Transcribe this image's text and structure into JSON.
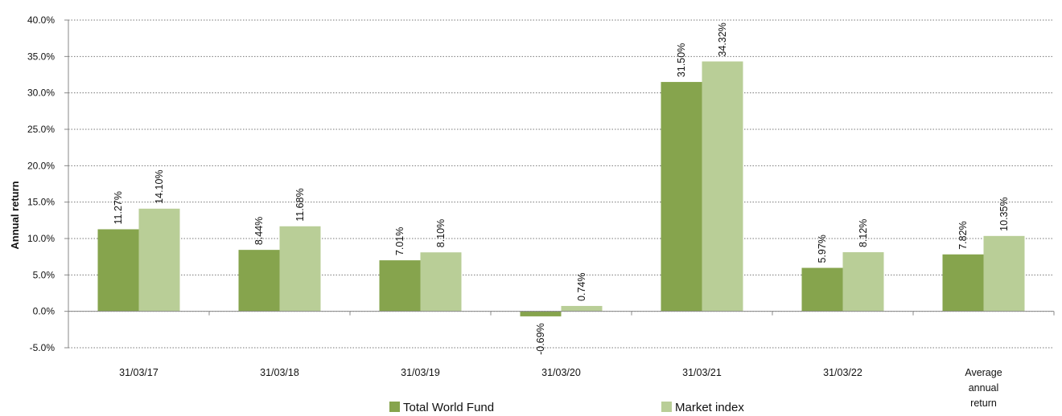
{
  "chart_data": {
    "type": "bar",
    "title": "",
    "xlabel": "",
    "ylabel": "Annual return",
    "ylim": [
      -5,
      40
    ],
    "yticks": [
      -5,
      0,
      5,
      10,
      15,
      20,
      25,
      30,
      35,
      40
    ],
    "ytick_labels": [
      "-5.0%",
      "0.0%",
      "5.0%",
      "10.0%",
      "15.0%",
      "20.0%",
      "25.0%",
      "30.0%",
      "35.0%",
      "40.0%"
    ],
    "grid": "horizontal dotted",
    "legend_position": "bottom",
    "categories": [
      [
        "31/03/17"
      ],
      [
        "31/03/18"
      ],
      [
        "31/03/19"
      ],
      [
        "31/03/20"
      ],
      [
        "31/03/21"
      ],
      [
        "31/03/22"
      ],
      [
        "Average",
        "annual",
        "return"
      ]
    ],
    "series": [
      {
        "name": "Total World Fund",
        "color": "#86a44d",
        "values": [
          11.27,
          8.44,
          7.01,
          -0.69,
          31.5,
          5.97,
          7.82
        ],
        "labels": [
          "11.27%",
          "8.44%",
          "7.01%",
          "-0.69%",
          "31.50%",
          "5.97%",
          "7.82%"
        ]
      },
      {
        "name": "Market index",
        "color": "#b9ce97",
        "values": [
          14.1,
          11.68,
          8.1,
          0.74,
          34.32,
          8.12,
          10.35
        ],
        "labels": [
          "14.10%",
          "11.68%",
          "8.10%",
          "0.74%",
          "34.32%",
          "8.12%",
          "10.35%"
        ]
      }
    ]
  }
}
